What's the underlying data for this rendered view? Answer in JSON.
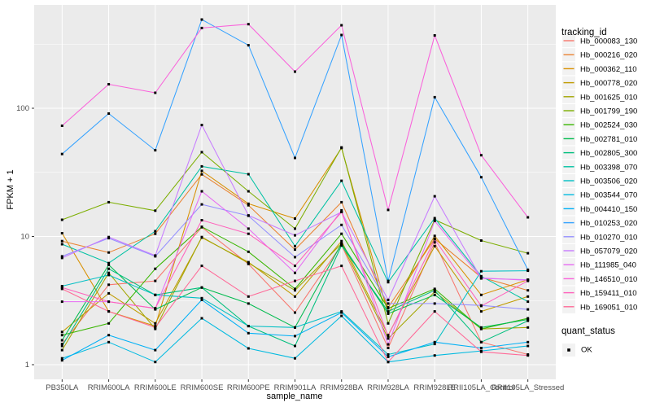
{
  "figure": {
    "y_axis_title": "FPKM + 1",
    "x_axis_title": "sample_name",
    "tracking_legend_title": "tracking_id",
    "quant_legend_title": "quant_status",
    "quant_legend_item": "OK"
  },
  "theme": {
    "panel_bg": "#EBEBEB",
    "grid_color": "#FFFFFF",
    "tick_color": "#333333",
    "tick_label_color": "#4D4D4D",
    "point_color": "#000000",
    "legend_key_bg": "#F2F2F2",
    "text_color": "#000000"
  },
  "chart_data": {
    "type": "line",
    "title": "",
    "xlabel": "sample_name",
    "ylabel": "FPKM + 1",
    "y_scale": "log10",
    "ylim": [
      0.77,
      660
    ],
    "y_ticks": [
      1,
      10,
      100
    ],
    "grid": true,
    "legend_title": "tracking_id",
    "legend_position": "right",
    "point_shape": "filled-black-square",
    "quant_status_legend": {
      "title": "quant_status",
      "items": [
        "OK"
      ]
    },
    "x_categories": [
      "PB350LA",
      "RRIM600LA",
      "RRIM600LE",
      "RRIM600SE",
      "RRIM600PE",
      "RRIM901LA",
      "RRIM928BA",
      "RRIM928LA",
      "RRIM928LE",
      "RRII105LA_Control",
      "RRII105LA_Stressed"
    ],
    "series": [
      {
        "name": "Hb_000083_130",
        "color": "#F8766D",
        "values": [
          1.45,
          4.2,
          4.5,
          11.8,
          6.1,
          2.55,
          8.6,
          1.35,
          9.0,
          1.5,
          1.2
        ]
      },
      {
        "name": "Hb_000216_020",
        "color": "#EA8331",
        "values": [
          9.2,
          7.5,
          10.5,
          30.5,
          17.5,
          7.9,
          18.5,
          2.8,
          9.6,
          4.8,
          3.8
        ]
      },
      {
        "name": "Hb_000362_110",
        "color": "#D89000",
        "values": [
          10.6,
          2.6,
          2.0,
          32.5,
          18.0,
          13.8,
          49.0,
          2.5,
          10.1,
          3.5,
          4.6
        ]
      },
      {
        "name": "Hb_000778_020",
        "color": "#C09B00",
        "values": [
          1.8,
          3.6,
          2.1,
          9.8,
          6.3,
          3.4,
          9.2,
          1.7,
          8.4,
          2.6,
          3.4
        ]
      },
      {
        "name": "Hb_001625_010",
        "color": "#A3A500",
        "values": [
          1.3,
          5.2,
          1.9,
          9.9,
          6.2,
          3.8,
          8.8,
          1.6,
          3.7,
          1.9,
          1.95
        ]
      },
      {
        "name": "Hb_001799_190",
        "color": "#7CAE00",
        "values": [
          13.5,
          18.5,
          15.9,
          45.5,
          22.5,
          11.5,
          49.5,
          2.1,
          13.5,
          9.3,
          7.4
        ]
      },
      {
        "name": "Hb_002524_030",
        "color": "#39B600",
        "values": [
          1.7,
          2.1,
          5.6,
          11.9,
          7.6,
          3.9,
          10.5,
          2.75,
          3.9,
          1.9,
          2.3
        ]
      },
      {
        "name": "Hb_002781_010",
        "color": "#00BB4E",
        "values": [
          1.55,
          6.0,
          2.7,
          4.0,
          3.0,
          1.95,
          8.8,
          2.5,
          3.5,
          1.95,
          2.25
        ]
      },
      {
        "name": "Hb_002805_300",
        "color": "#00BF7D",
        "values": [
          1.4,
          5.6,
          3.5,
          4.0,
          2.0,
          1.4,
          8.5,
          2.6,
          3.8,
          1.5,
          2.2
        ]
      },
      {
        "name": "Hb_003398_070",
        "color": "#00C1A3",
        "values": [
          8.7,
          6.2,
          11.0,
          35.2,
          30.6,
          8.4,
          27.2,
          4.4,
          13.9,
          4.9,
          3.1
        ]
      },
      {
        "name": "Hb_003506_020",
        "color": "#00BFC4",
        "values": [
          4.1,
          5.0,
          3.5,
          3.3,
          2.0,
          1.95,
          2.6,
          1.2,
          1.45,
          5.36,
          5.4
        ]
      },
      {
        "name": "Hb_003544_070",
        "color": "#00BAE0",
        "values": [
          1.12,
          1.5,
          1.05,
          2.3,
          1.34,
          1.12,
          2.4,
          1.05,
          1.18,
          1.28,
          1.4
        ]
      },
      {
        "name": "Hb_004410_150",
        "color": "#00B0F6",
        "values": [
          1.08,
          1.7,
          1.3,
          3.2,
          1.76,
          1.67,
          2.55,
          1.15,
          1.5,
          1.35,
          1.5
        ]
      },
      {
        "name": "Hb_010253_020",
        "color": "#35A2FF",
        "values": [
          44,
          91,
          47,
          492,
          310,
          41,
          373,
          4.5,
          122,
          29,
          5.5
        ]
      },
      {
        "name": "Hb_010270_010",
        "color": "#9590FF",
        "values": [
          7.0,
          9.7,
          7.0,
          17.8,
          14.5,
          6.9,
          12.3,
          3.0,
          3.0,
          2.9,
          2.7
        ]
      },
      {
        "name": "Hb_057079_020",
        "color": "#C77CFF",
        "values": [
          6.8,
          9.9,
          7.1,
          74,
          14.6,
          10.2,
          15.5,
          3.2,
          20.6,
          4.7,
          4.6
        ]
      },
      {
        "name": "Hb_111985_040",
        "color": "#E76BF3",
        "values": [
          3.1,
          3.1,
          2.75,
          22.5,
          11.5,
          5.2,
          16.0,
          1.44,
          13.2,
          4.75,
          4.55
        ]
      },
      {
        "name": "Hb_146510_010",
        "color": "#FA62DB",
        "values": [
          73,
          154,
          132,
          423,
          453,
          193,
          444,
          16.1,
          370,
          43,
          14.1
        ]
      },
      {
        "name": "Hb_159411_010",
        "color": "#FF62BC",
        "values": [
          4.0,
          3.1,
          2.75,
          13.4,
          10.5,
          5.9,
          15.5,
          1.67,
          9.5,
          2.87,
          4.5
        ]
      },
      {
        "name": "Hb_169051_010",
        "color": "#FF6A98",
        "values": [
          3.9,
          2.6,
          1.95,
          5.9,
          3.4,
          4.5,
          5.9,
          1.05,
          2.6,
          1.26,
          1.18
        ]
      }
    ]
  }
}
